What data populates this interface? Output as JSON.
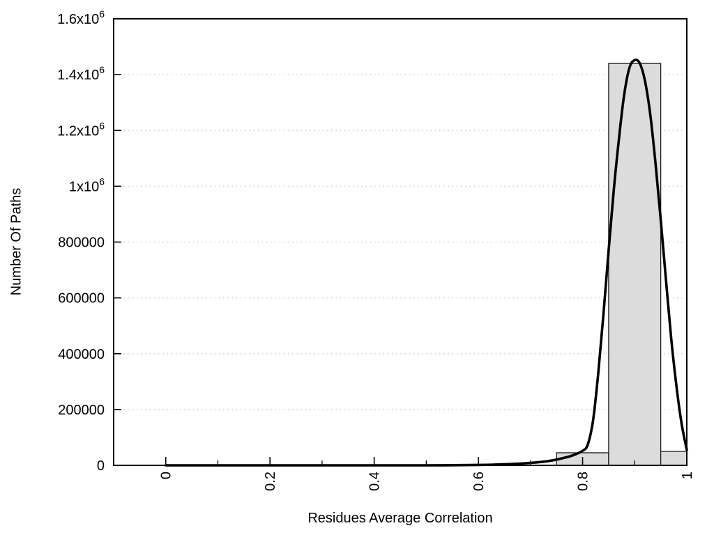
{
  "chart_data": {
    "type": "histogram",
    "title": "",
    "xlabel": "Residues Average Correlation",
    "ylabel": "Number Of Paths",
    "xlim": [
      -0.1,
      1.0
    ],
    "ylim": [
      0,
      1600000
    ],
    "grid": "horizontal-dotted",
    "legend": "none",
    "x_tick_labels": [
      {
        "v": 0,
        "text": "0"
      },
      {
        "v": 0.2,
        "text": "0.2"
      },
      {
        "v": 0.4,
        "text": "0.4"
      },
      {
        "v": 0.6,
        "text": "0.6"
      },
      {
        "v": 0.8,
        "text": "0.8"
      },
      {
        "v": 1,
        "text": "1"
      }
    ],
    "x_minor_ticks": [
      0.1,
      0.3,
      0.5,
      0.7,
      0.9
    ],
    "y_tick_labels": [
      {
        "v": 0,
        "text": "0"
      },
      {
        "v": 200000,
        "text": "200000"
      },
      {
        "v": 400000,
        "text": "400000"
      },
      {
        "v": 600000,
        "text": "600000"
      },
      {
        "v": 800000,
        "text": "800000"
      },
      {
        "v": 1000000,
        "text": "1x10",
        "exp": "6"
      },
      {
        "v": 1200000,
        "text": "1.2x10",
        "exp": "6"
      },
      {
        "v": 1400000,
        "text": "1.4x10",
        "exp": "6"
      },
      {
        "v": 1600000,
        "text": "1.6x10",
        "exp": "6"
      }
    ],
    "bars": [
      {
        "x0": 0.75,
        "x1": 0.85,
        "value": 45000
      },
      {
        "x0": 0.85,
        "x1": 0.95,
        "value": 1440000
      },
      {
        "x0": 0.95,
        "x1": 1.0,
        "value": 50000
      }
    ],
    "curve_series": {
      "name": "smooth-fit-curve",
      "points": [
        [
          0,
          0
        ],
        [
          0.05,
          0
        ],
        [
          0.1,
          0
        ],
        [
          0.15,
          0
        ],
        [
          0.2,
          0
        ],
        [
          0.25,
          0
        ],
        [
          0.3,
          0
        ],
        [
          0.35,
          0
        ],
        [
          0.4,
          0
        ],
        [
          0.45,
          0
        ],
        [
          0.5,
          0
        ],
        [
          0.55,
          500
        ],
        [
          0.6,
          1500
        ],
        [
          0.63,
          2500
        ],
        [
          0.66,
          4500
        ],
        [
          0.69,
          7500
        ],
        [
          0.72,
          12000
        ],
        [
          0.74,
          17000
        ],
        [
          0.76,
          25000
        ],
        [
          0.78,
          35000
        ],
        [
          0.8,
          52000
        ],
        [
          0.81,
          75000
        ],
        [
          0.82,
          160000
        ],
        [
          0.83,
          330000
        ],
        [
          0.84,
          540000
        ],
        [
          0.85,
          770000
        ],
        [
          0.86,
          990000
        ],
        [
          0.87,
          1175000
        ],
        [
          0.88,
          1330000
        ],
        [
          0.89,
          1425000
        ],
        [
          0.9,
          1452000
        ],
        [
          0.91,
          1440000
        ],
        [
          0.92,
          1375000
        ],
        [
          0.93,
          1255000
        ],
        [
          0.94,
          1080000
        ],
        [
          0.95,
          880000
        ],
        [
          0.96,
          665000
        ],
        [
          0.97,
          455000
        ],
        [
          0.98,
          285000
        ],
        [
          0.99,
          150000
        ],
        [
          1.0,
          55000
        ]
      ]
    },
    "colors": {
      "background": "#ffffff",
      "bar_fill": "#dcdcdc",
      "bar_border": "#1a1a1a",
      "curve": "#000000",
      "grid": "#cfcfcf",
      "frame": "#000000",
      "text": "#000000"
    }
  }
}
